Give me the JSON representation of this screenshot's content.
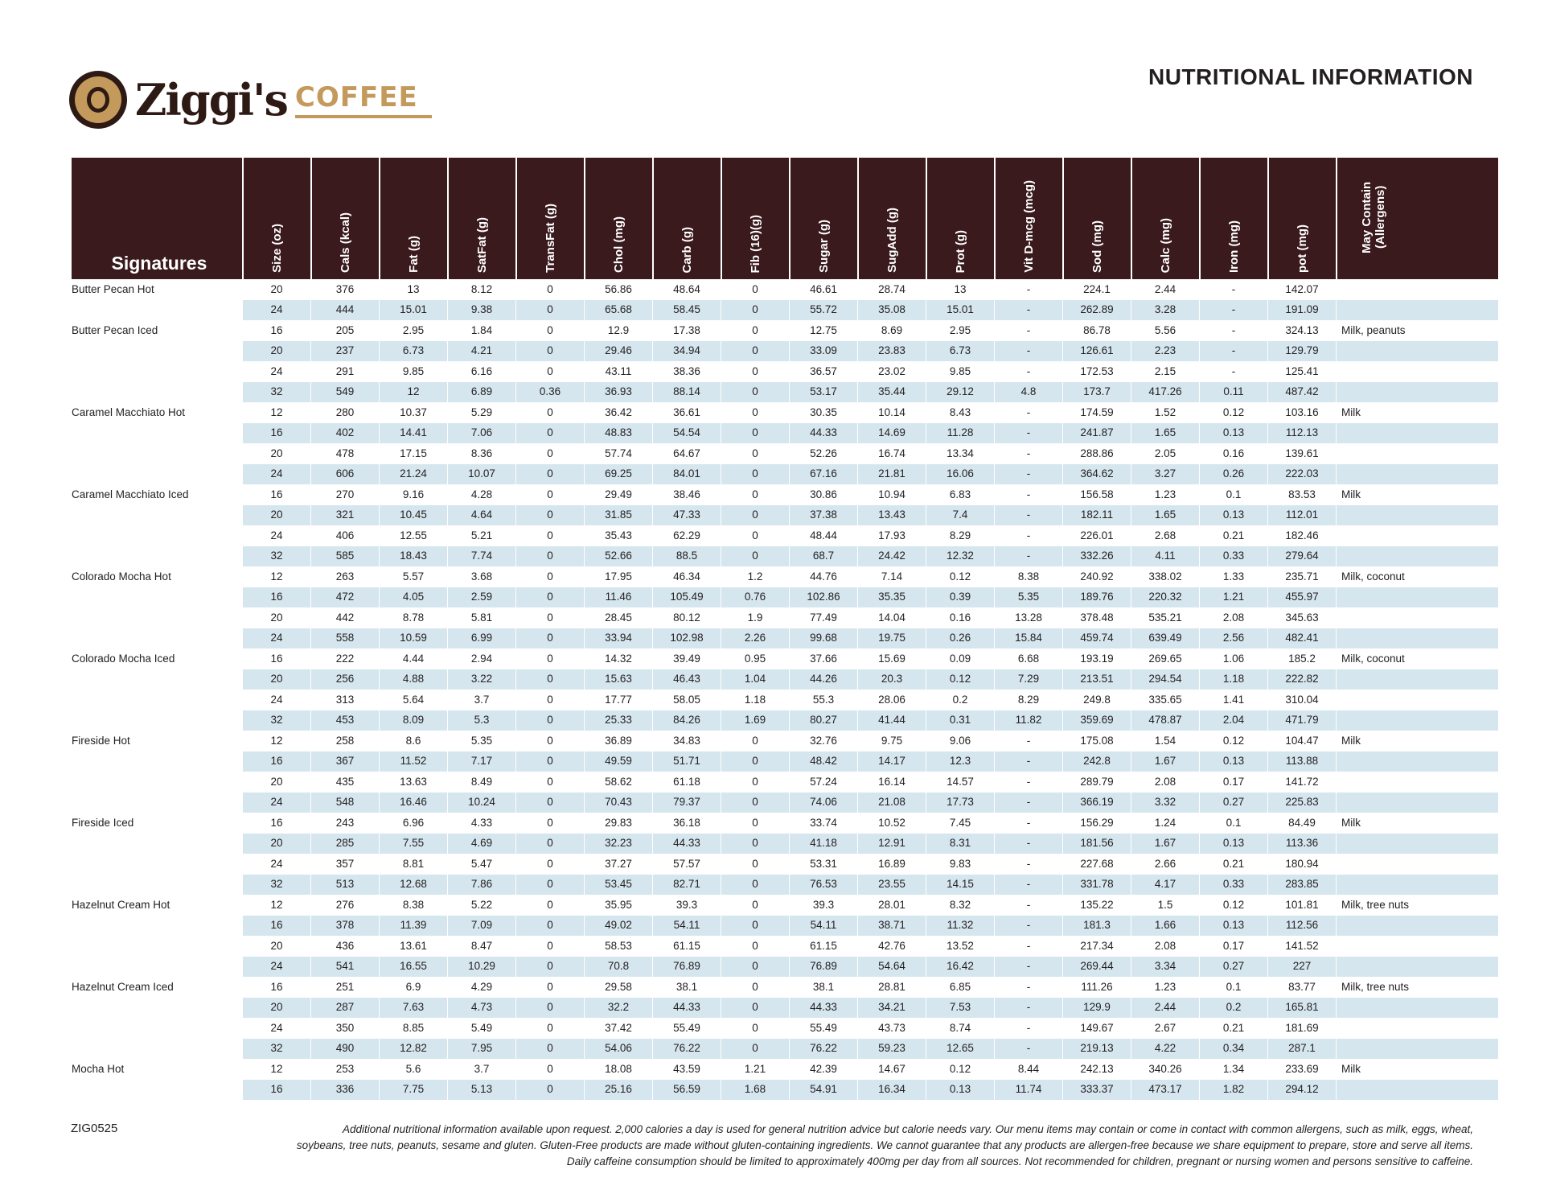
{
  "brand": {
    "name": "Ziggi's",
    "sub": "COFFEE"
  },
  "title": "NUTRITIONAL INFORMATION",
  "table": {
    "section_header": "Signatures",
    "columns": [
      "Size (oz)",
      "Cals (kcal)",
      "Fat (g)",
      "SatFat (g)",
      "TransFat (g)",
      "Chol (mg)",
      "Carb (g)",
      "Fib (16)(g)",
      "Sugar (g)",
      "SugAdd (g)",
      "Prot (g)",
      "Vit D-mcg (mcg)",
      "Sod (mg)",
      "Calc (mg)",
      "Iron (mg)",
      "pot (mg)",
      "May Contain (Allergens)"
    ],
    "rows": [
      [
        "Butter Pecan Hot",
        "20",
        "376",
        "13",
        "8.12",
        "0",
        "56.86",
        "48.64",
        "0",
        "46.61",
        "28.74",
        "13",
        "-",
        "224.1",
        "2.44",
        "-",
        "142.07",
        ""
      ],
      [
        "",
        "24",
        "444",
        "15.01",
        "9.38",
        "0",
        "65.68",
        "58.45",
        "0",
        "55.72",
        "35.08",
        "15.01",
        "-",
        "262.89",
        "3.28",
        "-",
        "191.09",
        ""
      ],
      [
        "Butter Pecan Iced",
        "16",
        "205",
        "2.95",
        "1.84",
        "0",
        "12.9",
        "17.38",
        "0",
        "12.75",
        "8.69",
        "2.95",
        "-",
        "86.78",
        "5.56",
        "-",
        "324.13",
        "Milk, peanuts"
      ],
      [
        "",
        "20",
        "237",
        "6.73",
        "4.21",
        "0",
        "29.46",
        "34.94",
        "0",
        "33.09",
        "23.83",
        "6.73",
        "-",
        "126.61",
        "2.23",
        "-",
        "129.79",
        ""
      ],
      [
        "",
        "24",
        "291",
        "9.85",
        "6.16",
        "0",
        "43.11",
        "38.36",
        "0",
        "36.57",
        "23.02",
        "9.85",
        "-",
        "172.53",
        "2.15",
        "-",
        "125.41",
        ""
      ],
      [
        "",
        "32",
        "549",
        "12",
        "6.89",
        "0.36",
        "36.93",
        "88.14",
        "0",
        "53.17",
        "35.44",
        "29.12",
        "4.8",
        "173.7",
        "417.26",
        "0.11",
        "487.42",
        ""
      ],
      [
        "Caramel Macchiato Hot",
        "12",
        "280",
        "10.37",
        "5.29",
        "0",
        "36.42",
        "36.61",
        "0",
        "30.35",
        "10.14",
        "8.43",
        "-",
        "174.59",
        "1.52",
        "0.12",
        "103.16",
        "Milk"
      ],
      [
        "",
        "16",
        "402",
        "14.41",
        "7.06",
        "0",
        "48.83",
        "54.54",
        "0",
        "44.33",
        "14.69",
        "11.28",
        "-",
        "241.87",
        "1.65",
        "0.13",
        "112.13",
        ""
      ],
      [
        "",
        "20",
        "478",
        "17.15",
        "8.36",
        "0",
        "57.74",
        "64.67",
        "0",
        "52.26",
        "16.74",
        "13.34",
        "-",
        "288.86",
        "2.05",
        "0.16",
        "139.61",
        ""
      ],
      [
        "",
        "24",
        "606",
        "21.24",
        "10.07",
        "0",
        "69.25",
        "84.01",
        "0",
        "67.16",
        "21.81",
        "16.06",
        "-",
        "364.62",
        "3.27",
        "0.26",
        "222.03",
        ""
      ],
      [
        "Caramel Macchiato Iced",
        "16",
        "270",
        "9.16",
        "4.28",
        "0",
        "29.49",
        "38.46",
        "0",
        "30.86",
        "10.94",
        "6.83",
        "-",
        "156.58",
        "1.23",
        "0.1",
        "83.53",
        "Milk"
      ],
      [
        "",
        "20",
        "321",
        "10.45",
        "4.64",
        "0",
        "31.85",
        "47.33",
        "0",
        "37.38",
        "13.43",
        "7.4",
        "-",
        "182.11",
        "1.65",
        "0.13",
        "112.01",
        ""
      ],
      [
        "",
        "24",
        "406",
        "12.55",
        "5.21",
        "0",
        "35.43",
        "62.29",
        "0",
        "48.44",
        "17.93",
        "8.29",
        "-",
        "226.01",
        "2.68",
        "0.21",
        "182.46",
        ""
      ],
      [
        "",
        "32",
        "585",
        "18.43",
        "7.74",
        "0",
        "52.66",
        "88.5",
        "0",
        "68.7",
        "24.42",
        "12.32",
        "-",
        "332.26",
        "4.11",
        "0.33",
        "279.64",
        ""
      ],
      [
        "Colorado Mocha Hot",
        "12",
        "263",
        "5.57",
        "3.68",
        "0",
        "17.95",
        "46.34",
        "1.2",
        "44.76",
        "7.14",
        "0.12",
        "8.38",
        "240.92",
        "338.02",
        "1.33",
        "235.71",
        "Milk, coconut"
      ],
      [
        "",
        "16",
        "472",
        "4.05",
        "2.59",
        "0",
        "11.46",
        "105.49",
        "0.76",
        "102.86",
        "35.35",
        "0.39",
        "5.35",
        "189.76",
        "220.32",
        "1.21",
        "455.97",
        ""
      ],
      [
        "",
        "20",
        "442",
        "8.78",
        "5.81",
        "0",
        "28.45",
        "80.12",
        "1.9",
        "77.49",
        "14.04",
        "0.16",
        "13.28",
        "378.48",
        "535.21",
        "2.08",
        "345.63",
        ""
      ],
      [
        "",
        "24",
        "558",
        "10.59",
        "6.99",
        "0",
        "33.94",
        "102.98",
        "2.26",
        "99.68",
        "19.75",
        "0.26",
        "15.84",
        "459.74",
        "639.49",
        "2.56",
        "482.41",
        ""
      ],
      [
        "Colorado Mocha Iced",
        "16",
        "222",
        "4.44",
        "2.94",
        "0",
        "14.32",
        "39.49",
        "0.95",
        "37.66",
        "15.69",
        "0.09",
        "6.68",
        "193.19",
        "269.65",
        "1.06",
        "185.2",
        "Milk, coconut"
      ],
      [
        "",
        "20",
        "256",
        "4.88",
        "3.22",
        "0",
        "15.63",
        "46.43",
        "1.04",
        "44.26",
        "20.3",
        "0.12",
        "7.29",
        "213.51",
        "294.54",
        "1.18",
        "222.82",
        ""
      ],
      [
        "",
        "24",
        "313",
        "5.64",
        "3.7",
        "0",
        "17.77",
        "58.05",
        "1.18",
        "55.3",
        "28.06",
        "0.2",
        "8.29",
        "249.8",
        "335.65",
        "1.41",
        "310.04",
        ""
      ],
      [
        "",
        "32",
        "453",
        "8.09",
        "5.3",
        "0",
        "25.33",
        "84.26",
        "1.69",
        "80.27",
        "41.44",
        "0.31",
        "11.82",
        "359.69",
        "478.87",
        "2.04",
        "471.79",
        ""
      ],
      [
        "Fireside Hot",
        "12",
        "258",
        "8.6",
        "5.35",
        "0",
        "36.89",
        "34.83",
        "0",
        "32.76",
        "9.75",
        "9.06",
        "-",
        "175.08",
        "1.54",
        "0.12",
        "104.47",
        "Milk"
      ],
      [
        "",
        "16",
        "367",
        "11.52",
        "7.17",
        "0",
        "49.59",
        "51.71",
        "0",
        "48.42",
        "14.17",
        "12.3",
        "-",
        "242.8",
        "1.67",
        "0.13",
        "113.88",
        ""
      ],
      [
        "",
        "20",
        "435",
        "13.63",
        "8.49",
        "0",
        "58.62",
        "61.18",
        "0",
        "57.24",
        "16.14",
        "14.57",
        "-",
        "289.79",
        "2.08",
        "0.17",
        "141.72",
        ""
      ],
      [
        "",
        "24",
        "548",
        "16.46",
        "10.24",
        "0",
        "70.43",
        "79.37",
        "0",
        "74.06",
        "21.08",
        "17.73",
        "-",
        "366.19",
        "3.32",
        "0.27",
        "225.83",
        ""
      ],
      [
        "Fireside Iced",
        "16",
        "243",
        "6.96",
        "4.33",
        "0",
        "29.83",
        "36.18",
        "0",
        "33.74",
        "10.52",
        "7.45",
        "-",
        "156.29",
        "1.24",
        "0.1",
        "84.49",
        "Milk"
      ],
      [
        "",
        "20",
        "285",
        "7.55",
        "4.69",
        "0",
        "32.23",
        "44.33",
        "0",
        "41.18",
        "12.91",
        "8.31",
        "-",
        "181.56",
        "1.67",
        "0.13",
        "113.36",
        ""
      ],
      [
        "",
        "24",
        "357",
        "8.81",
        "5.47",
        "0",
        "37.27",
        "57.57",
        "0",
        "53.31",
        "16.89",
        "9.83",
        "-",
        "227.68",
        "2.66",
        "0.21",
        "180.94",
        ""
      ],
      [
        "",
        "32",
        "513",
        "12.68",
        "7.86",
        "0",
        "53.45",
        "82.71",
        "0",
        "76.53",
        "23.55",
        "14.15",
        "-",
        "331.78",
        "4.17",
        "0.33",
        "283.85",
        ""
      ],
      [
        "Hazelnut Cream Hot",
        "12",
        "276",
        "8.38",
        "5.22",
        "0",
        "35.95",
        "39.3",
        "0",
        "39.3",
        "28.01",
        "8.32",
        "-",
        "135.22",
        "1.5",
        "0.12",
        "101.81",
        "Milk, tree nuts"
      ],
      [
        "",
        "16",
        "378",
        "11.39",
        "7.09",
        "0",
        "49.02",
        "54.11",
        "0",
        "54.11",
        "38.71",
        "11.32",
        "-",
        "181.3",
        "1.66",
        "0.13",
        "112.56",
        ""
      ],
      [
        "",
        "20",
        "436",
        "13.61",
        "8.47",
        "0",
        "58.53",
        "61.15",
        "0",
        "61.15",
        "42.76",
        "13.52",
        "-",
        "217.34",
        "2.08",
        "0.17",
        "141.52",
        ""
      ],
      [
        "",
        "24",
        "541",
        "16.55",
        "10.29",
        "0",
        "70.8",
        "76.89",
        "0",
        "76.89",
        "54.64",
        "16.42",
        "-",
        "269.44",
        "3.34",
        "0.27",
        "227",
        ""
      ],
      [
        "Hazelnut Cream Iced",
        "16",
        "251",
        "6.9",
        "4.29",
        "0",
        "29.58",
        "38.1",
        "0",
        "38.1",
        "28.81",
        "6.85",
        "-",
        "111.26",
        "1.23",
        "0.1",
        "83.77",
        "Milk, tree nuts"
      ],
      [
        "",
        "20",
        "287",
        "7.63",
        "4.73",
        "0",
        "32.2",
        "44.33",
        "0",
        "44.33",
        "34.21",
        "7.53",
        "-",
        "129.9",
        "2.44",
        "0.2",
        "165.81",
        ""
      ],
      [
        "",
        "24",
        "350",
        "8.85",
        "5.49",
        "0",
        "37.42",
        "55.49",
        "0",
        "55.49",
        "43.73",
        "8.74",
        "-",
        "149.67",
        "2.67",
        "0.21",
        "181.69",
        ""
      ],
      [
        "",
        "32",
        "490",
        "12.82",
        "7.95",
        "0",
        "54.06",
        "76.22",
        "0",
        "76.22",
        "59.23",
        "12.65",
        "-",
        "219.13",
        "4.22",
        "0.34",
        "287.1",
        ""
      ],
      [
        "Mocha Hot",
        "12",
        "253",
        "5.6",
        "3.7",
        "0",
        "18.08",
        "43.59",
        "1.21",
        "42.39",
        "14.67",
        "0.12",
        "8.44",
        "242.13",
        "340.26",
        "1.34",
        "233.69",
        "Milk"
      ],
      [
        "",
        "16",
        "336",
        "7.75",
        "5.13",
        "0",
        "25.16",
        "56.59",
        "1.68",
        "54.91",
        "16.34",
        "0.13",
        "11.74",
        "333.37",
        "473.17",
        "1.82",
        "294.12",
        ""
      ]
    ]
  },
  "footer": {
    "code": "ZIG0525",
    "disclaimer": "Additional nutritional information available upon request. 2,000 calories a day is used for general nutrition advice but calorie needs vary. Our menu items may contain or come in contact with common allergens, such as milk, eggs, wheat, soybeans, tree nuts, peanuts, sesame and gluten. Gluten-Free products are made without gluten-containing ingredients. We cannot guarantee that any products are allergen-free because we share equipment to prepare, store and serve all items. Daily caffeine consumption should be limited to approximately 400mg per day from all sources. Not recommended for children, pregnant or nursing women and persons sensitive to caffeine."
  },
  "colors": {
    "header_bg": "#3a1a1c",
    "stripe": "#d5e6ee",
    "brand_gold": "#c49a5c",
    "brand_dark": "#2e1a14"
  }
}
